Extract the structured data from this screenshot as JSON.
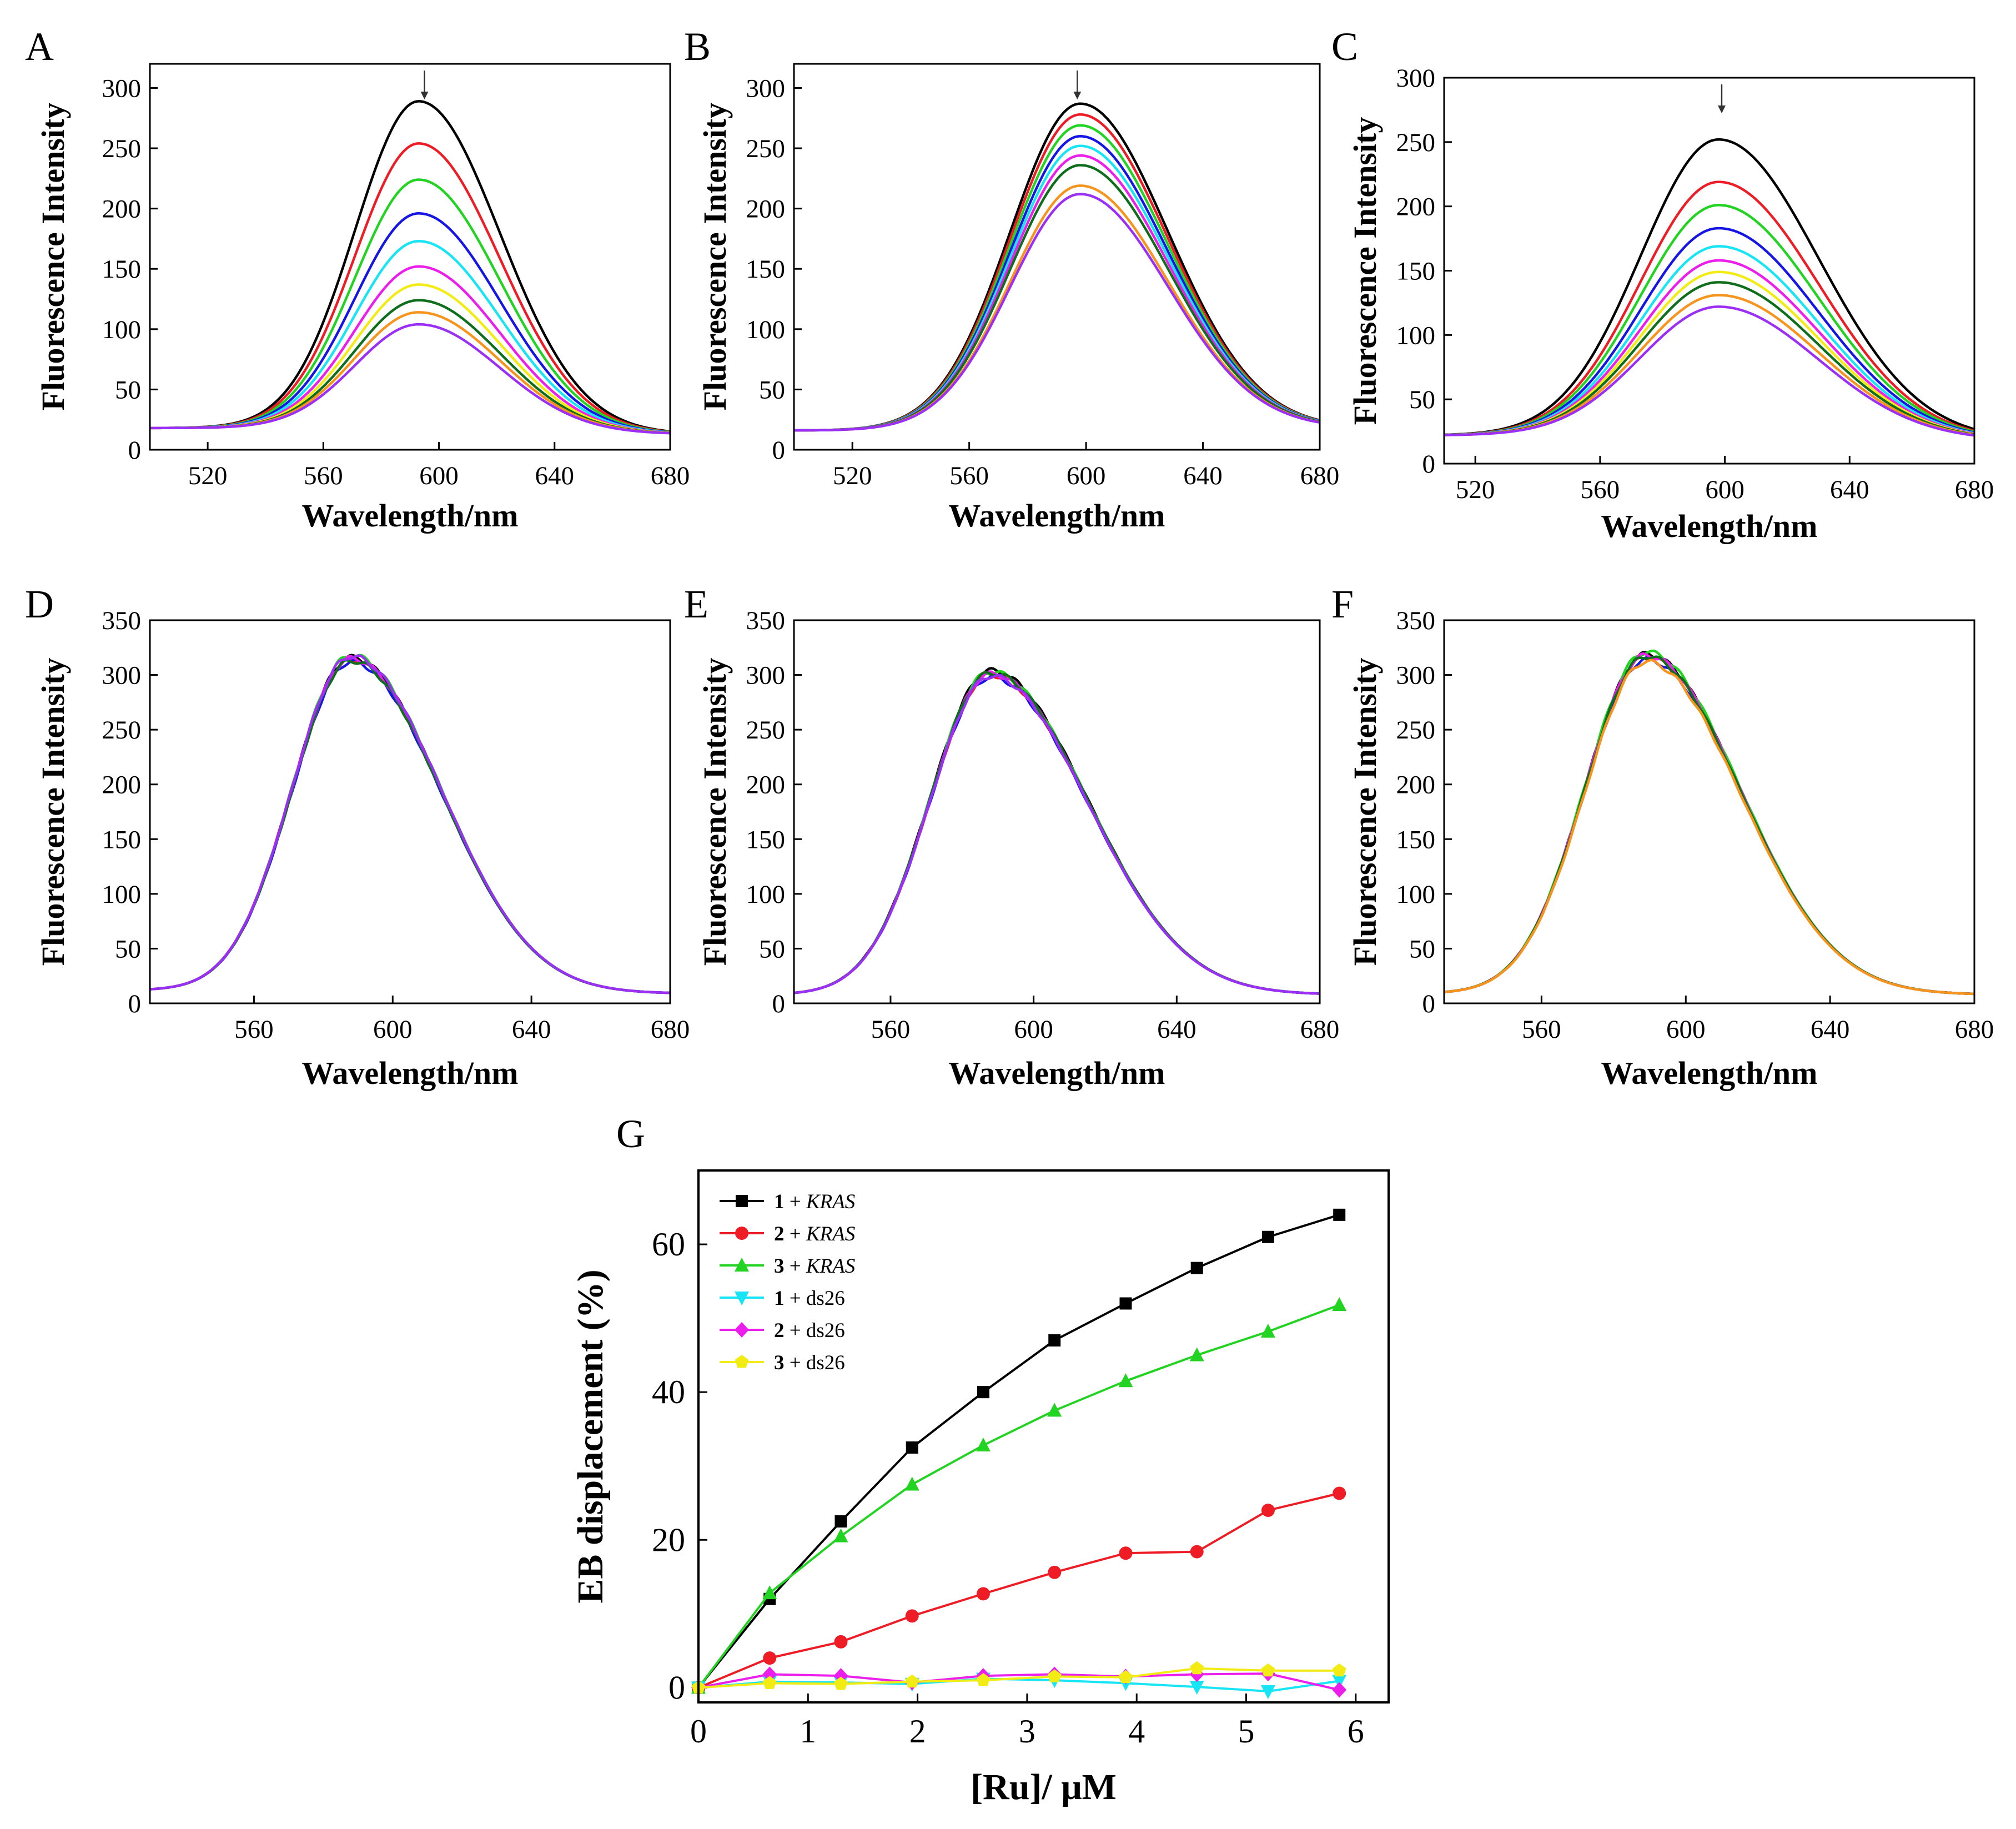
{
  "colors": {
    "black": "#000000",
    "red": "#ee1c25",
    "green": "#22d322",
    "blue": "#1515e6",
    "cyan": "#17e5f5",
    "magenta": "#ec1eec",
    "yellow": "#f2ec14",
    "olive": "#7a7a10",
    "darkgreen": "#0f6e1c",
    "orange": "#f7941d",
    "purple": "#9b2ff5"
  },
  "chart_data": [
    {
      "id": "A",
      "type": "line",
      "panel_label": "A",
      "xlabel": "Wavelength/nm",
      "ylabel": "Fluorescence Intensity",
      "xlim": [
        500,
        680
      ],
      "ylim": [
        0,
        320
      ],
      "xticks": [
        520,
        560,
        600,
        640,
        680
      ],
      "xtick_labels": [
        "520",
        "560",
        "600",
        "640",
        "680"
      ],
      "yticks": [
        0,
        50,
        100,
        150,
        200,
        250,
        300
      ],
      "ytick_labels": [
        "0",
        "50",
        "100",
        "150",
        "200",
        "250",
        "300"
      ],
      "arrow_x": 595,
      "shape": {
        "center": 593,
        "sigma_left": 22,
        "sigma_right": 28,
        "baseline_left": 18,
        "baseline_right": 13,
        "left_anchor": 500,
        "right_anchor": 680
      },
      "peaks": [
        289,
        254,
        224,
        196,
        173,
        152,
        137,
        124,
        114,
        104
      ],
      "color_keys": [
        "black",
        "red",
        "green",
        "blue",
        "cyan",
        "magenta",
        "yellow",
        "darkgreen",
        "orange",
        "purple"
      ]
    },
    {
      "id": "B",
      "type": "line",
      "panel_label": "B",
      "xlabel": "Wavelength/nm",
      "ylabel": "Fluorescence Intensity",
      "xlim": [
        500,
        680
      ],
      "ylim": [
        0,
        320
      ],
      "xticks": [
        520,
        560,
        600,
        640,
        680
      ],
      "xtick_labels": [
        "520",
        "560",
        "600",
        "640",
        "680"
      ],
      "yticks": [
        0,
        50,
        100,
        150,
        200,
        250,
        300
      ],
      "ytick_labels": [
        "0",
        "50",
        "100",
        "150",
        "200",
        "250",
        "300"
      ],
      "arrow_x": 597,
      "shape": {
        "center": 598,
        "sigma_left": 24,
        "sigma_right": 30,
        "baseline_left": 16,
        "baseline_right": 18,
        "left_anchor": 500,
        "right_anchor": 680
      },
      "peaks": [
        287,
        278,
        269,
        260,
        252,
        244,
        236,
        219,
        212
      ],
      "color_keys": [
        "black",
        "red",
        "green",
        "blue",
        "cyan",
        "magenta",
        "darkgreen",
        "orange",
        "purple"
      ]
    },
    {
      "id": "C",
      "type": "line",
      "panel_label": "C",
      "xlabel": "Wavelength/nm",
      "ylabel": "Fluorescence Intensity",
      "xlim": [
        510,
        680
      ],
      "ylim": [
        0,
        300
      ],
      "xticks": [
        520,
        560,
        600,
        640,
        680
      ],
      "xtick_labels": [
        "520",
        "560",
        "600",
        "640",
        "680"
      ],
      "yticks": [
        0,
        50,
        100,
        150,
        200,
        250,
        300
      ],
      "ytick_labels": [
        "0",
        "50",
        "100",
        "150",
        "200",
        "250",
        "300"
      ],
      "arrow_x": 599,
      "shape": {
        "center": 598,
        "sigma_left": 25,
        "sigma_right": 32,
        "baseline_left": 22,
        "baseline_right": 18,
        "left_anchor": 510,
        "right_anchor": 680
      },
      "peaks": [
        252,
        219,
        201,
        183,
        169,
        158,
        149,
        141,
        131,
        122
      ],
      "color_keys": [
        "black",
        "red",
        "green",
        "blue",
        "cyan",
        "magenta",
        "yellow",
        "darkgreen",
        "orange",
        "purple"
      ]
    },
    {
      "id": "D",
      "type": "line",
      "panel_label": "D",
      "xlabel": "Wavelength/nm",
      "ylabel": "Fluorescence Intensity",
      "xlim": [
        530,
        680
      ],
      "ylim": [
        0,
        350
      ],
      "xticks": [
        560,
        600,
        640,
        680
      ],
      "xtick_labels": [
        "560",
        "600",
        "640",
        "680"
      ],
      "yticks": [
        0,
        50,
        100,
        150,
        200,
        250,
        300,
        350
      ],
      "ytick_labels": [
        "0",
        "50",
        "100",
        "150",
        "200",
        "250",
        "300",
        "350"
      ],
      "shape": {
        "center": 588,
        "sigma_left": 17,
        "sigma_right": 26,
        "baseline_left": 12,
        "baseline_right": 9,
        "left_anchor": 530,
        "right_anchor": 680
      },
      "peaks": [
        316,
        314,
        318,
        312,
        315,
        313,
        317
      ],
      "color_keys": [
        "black",
        "red",
        "green",
        "blue",
        "magenta",
        "darkgreen",
        "purple"
      ]
    },
    {
      "id": "E",
      "type": "line",
      "panel_label": "E",
      "xlabel": "Wavelength/nm",
      "ylabel": "Fluorescence Intensity",
      "xlim": [
        533,
        680
      ],
      "ylim": [
        0,
        350
      ],
      "xticks": [
        560,
        600,
        640,
        680
      ],
      "xtick_labels": [
        "560",
        "600",
        "640",
        "680"
      ],
      "yticks": [
        0,
        50,
        100,
        150,
        200,
        250,
        300,
        350
      ],
      "ytick_labels": [
        "0",
        "50",
        "100",
        "150",
        "200",
        "250",
        "300",
        "350"
      ],
      "shape": {
        "center": 588,
        "sigma_left": 17,
        "sigma_right": 27,
        "baseline_left": 8,
        "baseline_right": 8,
        "left_anchor": 533,
        "right_anchor": 680
      },
      "peaks": [
        304,
        300,
        303,
        298,
        301,
        302,
        299
      ],
      "color_keys": [
        "black",
        "red",
        "green",
        "blue",
        "magenta",
        "darkgreen",
        "purple"
      ]
    },
    {
      "id": "F",
      "type": "line",
      "panel_label": "F",
      "xlabel": "Wavelength/nm",
      "ylabel": "Fluorescence Intensity",
      "xlim": [
        533,
        680
      ],
      "ylim": [
        0,
        350
      ],
      "xticks": [
        560,
        600,
        640,
        680
      ],
      "xtick_labels": [
        "560",
        "600",
        "640",
        "680"
      ],
      "yticks": [
        0,
        50,
        100,
        150,
        200,
        250,
        300,
        350
      ],
      "ytick_labels": [
        "0",
        "50",
        "100",
        "150",
        "200",
        "250",
        "300",
        "350"
      ],
      "shape": {
        "center": 589,
        "sigma_left": 17,
        "sigma_right": 26,
        "baseline_left": 9,
        "baseline_right": 8,
        "left_anchor": 533,
        "right_anchor": 680
      },
      "peaks": [
        319,
        316,
        321,
        314,
        318,
        317,
        312
      ],
      "color_keys": [
        "black",
        "red",
        "green",
        "blue",
        "magenta",
        "darkgreen",
        "orange"
      ]
    },
    {
      "id": "G",
      "type": "line",
      "panel_label": "G",
      "xlabel": "[Ru]/ μM",
      "ylabel": "EB displacement (%)",
      "xlim": [
        0,
        6.3
      ],
      "ylim": [
        -2,
        70
      ],
      "xticks": [
        0,
        1,
        2,
        3,
        4,
        5,
        6
      ],
      "xtick_labels": [
        "0",
        "1",
        "2",
        "3",
        "4",
        "5",
        "6"
      ],
      "yticks": [
        0,
        20,
        40,
        60
      ],
      "ytick_labels": [
        "0",
        "20",
        "40",
        "60"
      ],
      "legend_position": "top-left",
      "x": [
        0,
        0.65,
        1.3,
        1.95,
        2.6,
        3.25,
        3.9,
        4.55,
        5.2,
        5.85
      ],
      "series": [
        {
          "id": "s1",
          "label_num": "1",
          "label_rest": " + ",
          "label_italic": "KRAS",
          "marker": "square",
          "color_key": "black",
          "values": [
            0,
            12.0,
            22.5,
            32.5,
            40.0,
            47.0,
            52.0,
            56.8,
            61.0,
            64.0
          ]
        },
        {
          "id": "s2",
          "label_num": "2",
          "label_rest": " + ",
          "label_italic": "KRAS",
          "marker": "circle",
          "color_key": "red",
          "values": [
            0,
            4.0,
            6.2,
            9.7,
            12.7,
            15.6,
            18.2,
            18.4,
            24.0,
            26.3
          ]
        },
        {
          "id": "s3",
          "label_num": "3",
          "label_rest": " + ",
          "label_italic": "KRAS",
          "marker": "triangle-up",
          "color_key": "green",
          "values": [
            0,
            12.8,
            20.5,
            27.5,
            32.8,
            37.5,
            41.5,
            45.0,
            48.2,
            51.8
          ]
        },
        {
          "id": "s4",
          "label_num": "1",
          "label_rest": " + ds26",
          "label_italic": "",
          "marker": "triangle-down",
          "color_key": "cyan",
          "values": [
            0,
            0.8,
            0.7,
            0.5,
            1.2,
            1.0,
            0.6,
            0.1,
            -0.5,
            0.9
          ]
        },
        {
          "id": "s5",
          "label_num": "2",
          "label_rest": " + ds26",
          "label_italic": "",
          "marker": "diamond",
          "color_key": "magenta",
          "values": [
            0,
            1.8,
            1.6,
            0.7,
            1.6,
            1.8,
            1.5,
            1.8,
            1.9,
            -0.3
          ]
        },
        {
          "id": "s6",
          "label_num": "3",
          "label_rest": " + ds26",
          "label_italic": "",
          "marker": "pentagon",
          "color_key": "yellow",
          "values": [
            0,
            0.6,
            0.5,
            0.8,
            1.0,
            1.5,
            1.4,
            2.6,
            2.3,
            2.3
          ]
        }
      ]
    }
  ]
}
